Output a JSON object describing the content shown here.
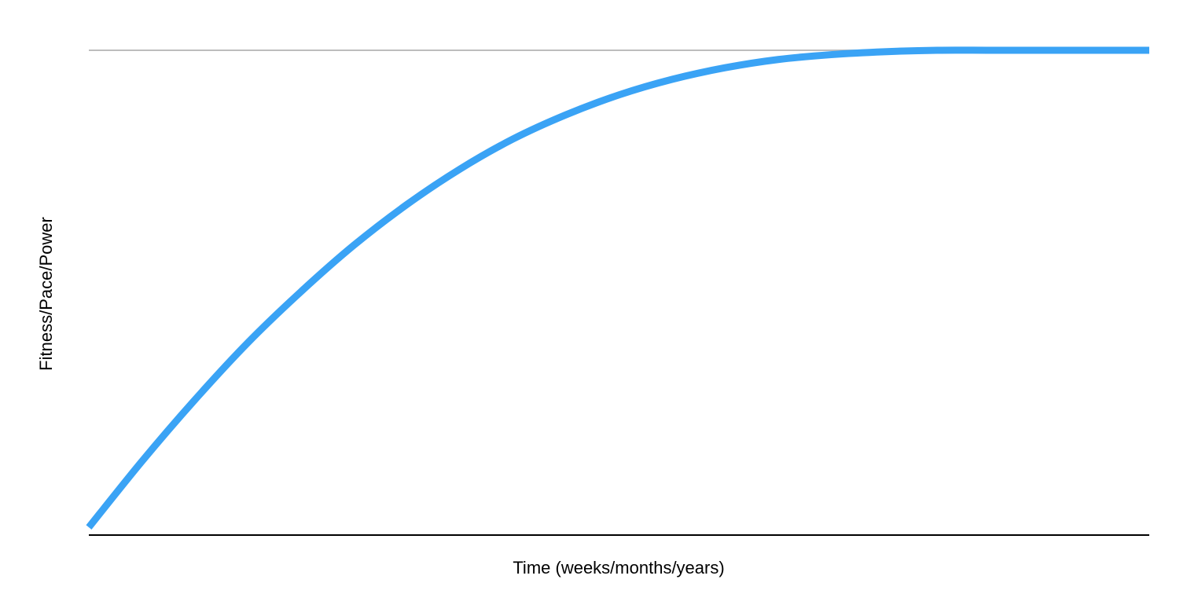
{
  "chart_data": {
    "type": "line",
    "title": "",
    "xlabel": "Time (weeks/months/years)",
    "ylabel": "Fitness/Pace/Power",
    "xlim": [
      0,
      1
    ],
    "ylim": [
      0,
      1
    ],
    "grid": false,
    "legend": "none",
    "reference_line": {
      "y": 1,
      "color": "#bdbdbd"
    },
    "series": [
      {
        "color": "#3aa3f5",
        "x": [
          0,
          0.05,
          0.1,
          0.15,
          0.2,
          0.25,
          0.3,
          0.35,
          0.4,
          0.45,
          0.5,
          0.55,
          0.6,
          0.65,
          0.7,
          0.75,
          0.8,
          0.85,
          0.9,
          0.95,
          1
        ],
        "y": [
          0.016,
          0.152,
          0.279,
          0.397,
          0.502,
          0.598,
          0.682,
          0.755,
          0.817,
          0.867,
          0.908,
          0.94,
          0.964,
          0.981,
          0.991,
          0.997,
          1.0,
          1.0,
          1.0,
          1.0,
          1.0
        ]
      }
    ]
  }
}
